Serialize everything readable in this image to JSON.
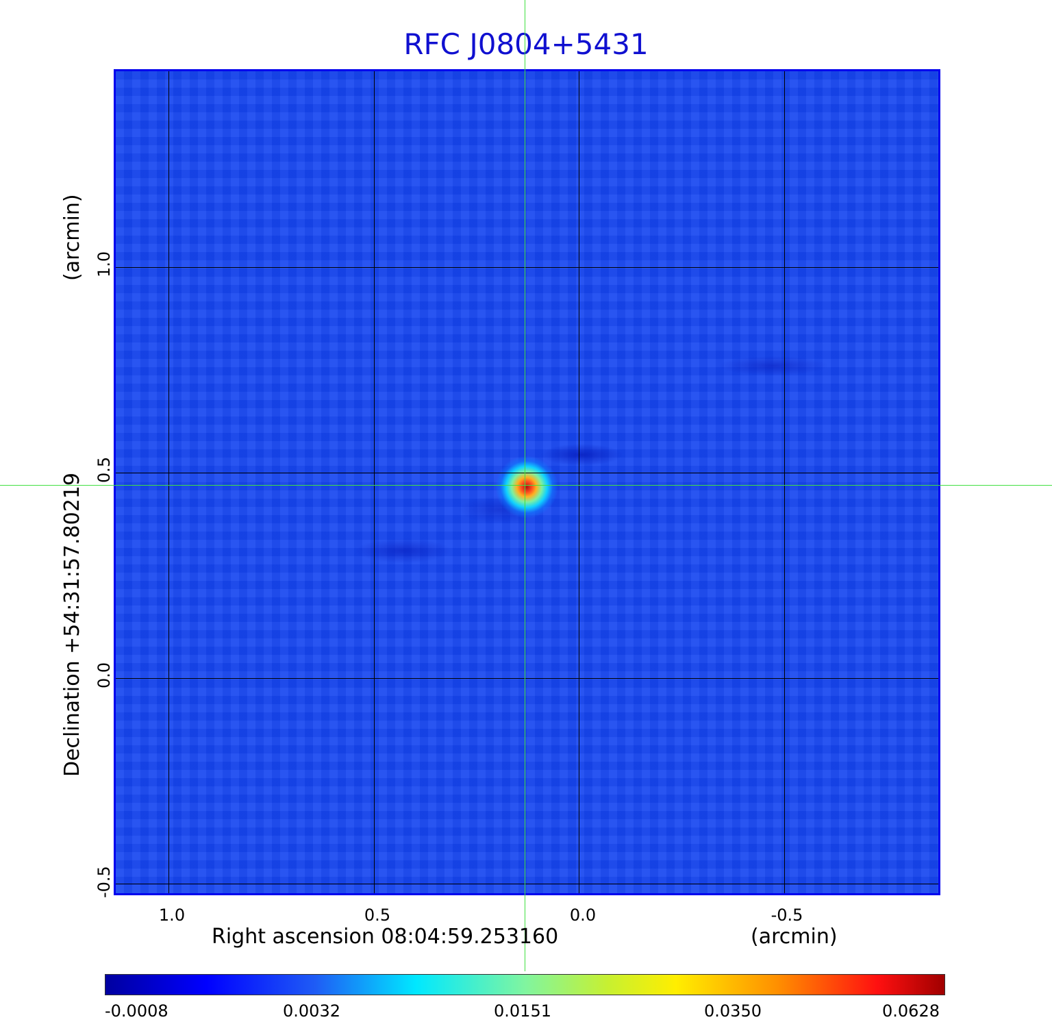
{
  "title": "RFC J0804+5431",
  "x_axis": {
    "label": "Right ascension  08:04:59.253160",
    "unit": "(arcmin)",
    "ticks": [
      "1.0",
      "0.5",
      "0.0",
      "-0.5"
    ]
  },
  "y_axis": {
    "label": "Declination  +54:31:57.80219",
    "unit": "(arcmin)",
    "ticks": [
      "1.0",
      "0.5",
      "0.0",
      "-0.5"
    ]
  },
  "colorbar": {
    "ticks": [
      "-0.0008",
      "0.0032",
      "0.0151",
      "0.0350",
      "0.0628"
    ],
    "colormap": "jet"
  },
  "colors": {
    "title": "#1010d0",
    "frame": "#0000ee",
    "crosshair": "#40e040",
    "background_field": "#1747f0"
  }
}
